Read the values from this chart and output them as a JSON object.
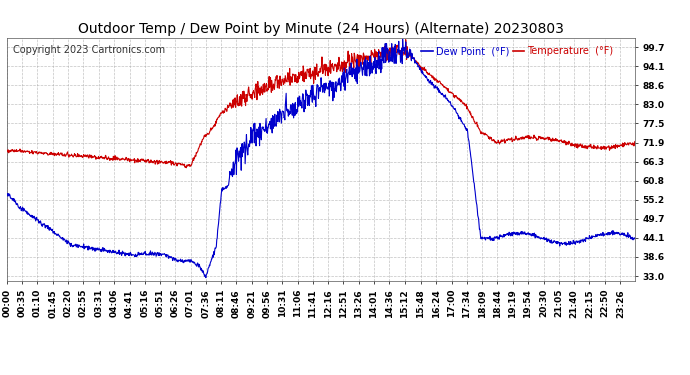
{
  "title": "Outdoor Temp / Dew Point by Minute (24 Hours) (Alternate) 20230803",
  "copyright": "Copyright 2023 Cartronics.com",
  "legend_dew": "Dew Point  (°F)",
  "legend_temp": "Temperature  (°F)",
  "dew_color": "#0000cc",
  "temp_color": "#cc0000",
  "background_color": "#ffffff",
  "grid_color": "#aaaaaa",
  "yticks": [
    33.0,
    38.6,
    44.1,
    49.7,
    55.2,
    60.8,
    66.3,
    71.9,
    77.5,
    83.0,
    88.6,
    94.1,
    99.7
  ],
  "ylim": [
    31.5,
    102.5
  ],
  "xtick_labels": [
    "00:00",
    "00:35",
    "01:10",
    "01:45",
    "02:20",
    "02:55",
    "03:31",
    "04:06",
    "04:41",
    "05:16",
    "05:51",
    "06:26",
    "07:01",
    "07:36",
    "08:11",
    "08:46",
    "09:21",
    "09:56",
    "10:31",
    "11:06",
    "11:41",
    "12:16",
    "12:51",
    "13:26",
    "14:01",
    "14:36",
    "15:12",
    "15:48",
    "16:24",
    "17:00",
    "17:34",
    "18:09",
    "18:44",
    "19:19",
    "19:54",
    "20:30",
    "21:05",
    "21:40",
    "22:15",
    "22:50",
    "23:26"
  ],
  "title_fontsize": 10,
  "label_fontsize": 6.5,
  "copyright_fontsize": 7,
  "line_width": 0.8
}
